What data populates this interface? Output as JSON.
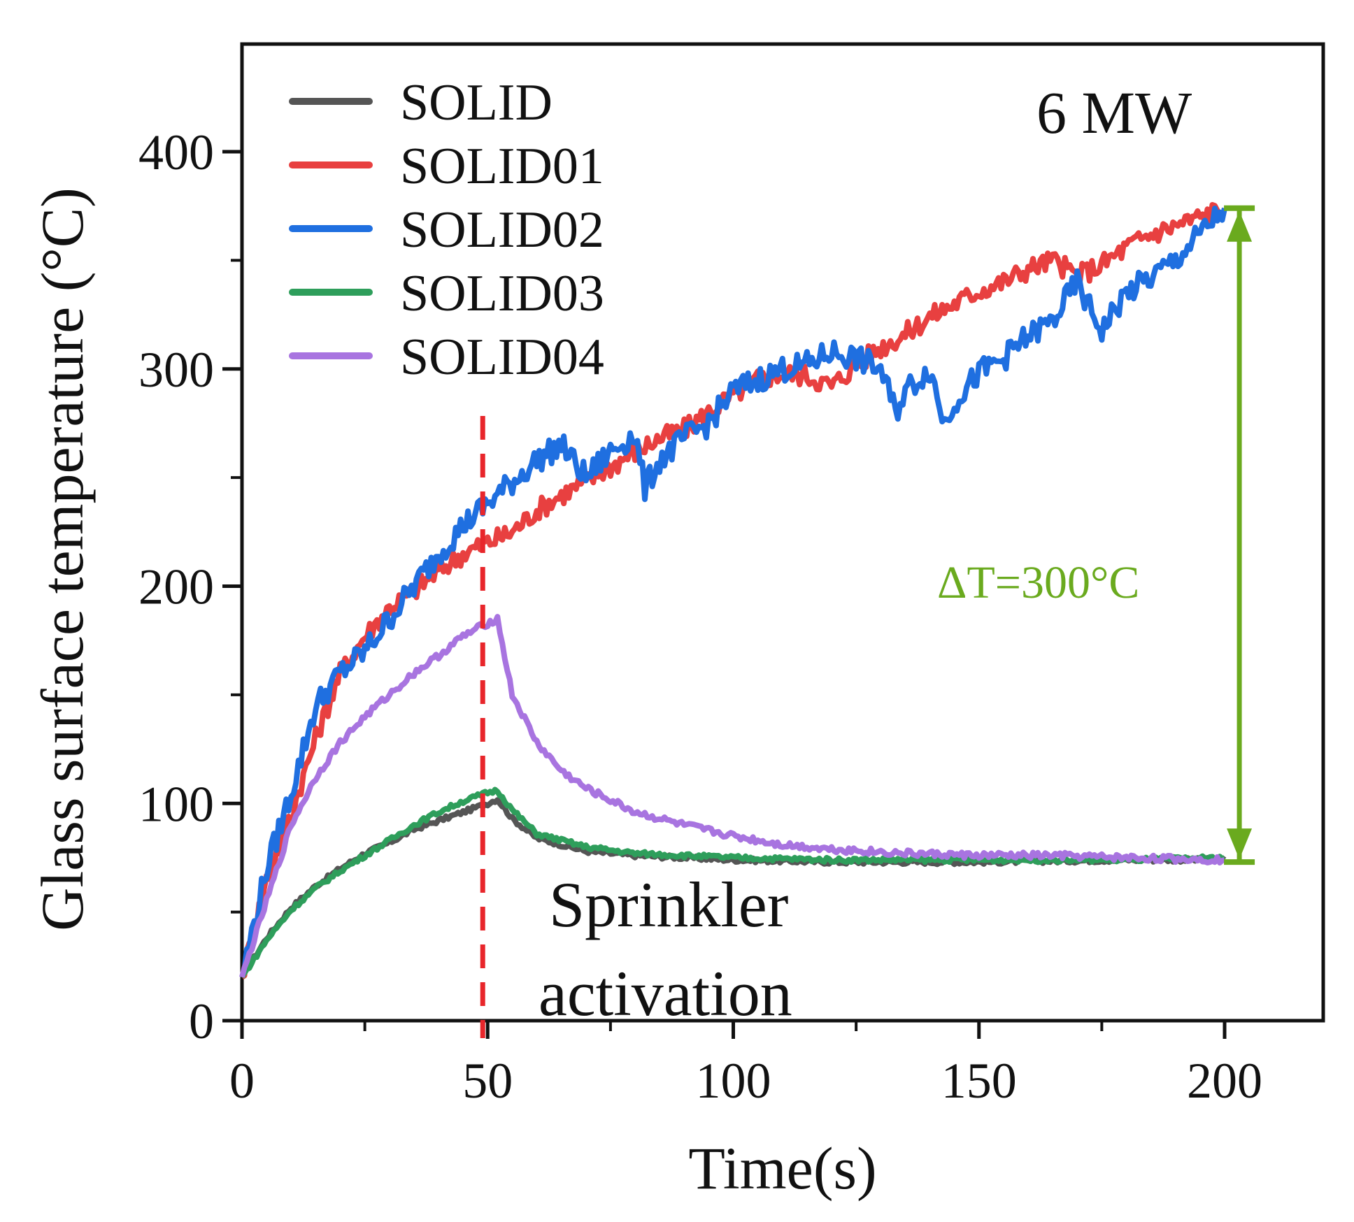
{
  "chart_data": {
    "type": "line",
    "title": "",
    "xlabel": "Time(s)",
    "ylabel": "Glass surface temperature (°C)",
    "xlim": [
      0,
      220
    ],
    "ylim": [
      0,
      450
    ],
    "x_ticks": [
      0,
      50,
      100,
      150,
      200
    ],
    "x_tick_labels": [
      "0",
      "50",
      "100",
      "150",
      "200"
    ],
    "x_minor_ticks": [
      25,
      75,
      125,
      175
    ],
    "y_ticks": [
      0,
      100,
      200,
      300,
      400
    ],
    "y_tick_labels": [
      "0",
      "100",
      "200",
      "300",
      "400"
    ],
    "y_minor_ticks": [
      50,
      150,
      250,
      350
    ],
    "legend_position": "top-left",
    "series": [
      {
        "name": "SOLID",
        "color": "#555555",
        "x": [
          0,
          5,
          10,
          15,
          20,
          25,
          30,
          35,
          40,
          45,
          50,
          52,
          55,
          60,
          70,
          80,
          90,
          100,
          120,
          150,
          180,
          200
        ],
        "y": [
          20,
          38,
          52,
          62,
          70,
          77,
          82,
          88,
          92,
          96,
          100,
          102,
          93,
          84,
          78,
          76,
          75,
          74,
          73,
          73,
          74,
          74
        ]
      },
      {
        "name": "SOLID01",
        "color": "#e84040",
        "x": [
          0,
          5,
          10,
          15,
          20,
          25,
          30,
          35,
          40,
          45,
          50,
          55,
          60,
          65,
          70,
          75,
          80,
          85,
          90,
          95,
          100,
          105,
          110,
          115,
          120,
          125,
          130,
          135,
          140,
          145,
          150,
          155,
          160,
          165,
          170,
          175,
          180,
          185,
          190,
          195,
          200
        ],
        "y": [
          20,
          65,
          95,
          130,
          160,
          177,
          190,
          198,
          207,
          215,
          220,
          225,
          235,
          242,
          248,
          255,
          262,
          268,
          272,
          280,
          288,
          295,
          298,
          297,
          292,
          302,
          310,
          316,
          324,
          330,
          336,
          340,
          346,
          350,
          343,
          348,
          356,
          362,
          366,
          370,
          374
        ]
      },
      {
        "name": "SOLID02",
        "color": "#1f6fe0",
        "x": [
          0,
          5,
          10,
          15,
          20,
          25,
          30,
          35,
          40,
          45,
          50,
          55,
          60,
          65,
          70,
          75,
          80,
          82,
          85,
          90,
          95,
          100,
          105,
          110,
          115,
          120,
          125,
          130,
          133,
          135,
          140,
          143,
          145,
          150,
          155,
          160,
          165,
          170,
          172,
          175,
          180,
          185,
          190,
          195,
          200
        ],
        "y": [
          20,
          70,
          105,
          145,
          160,
          170,
          185,
          200,
          215,
          228,
          238,
          248,
          258,
          265,
          250,
          262,
          270,
          245,
          258,
          268,
          275,
          290,
          295,
          300,
          302,
          308,
          305,
          300,
          280,
          290,
          300,
          275,
          285,
          298,
          305,
          315,
          322,
          340,
          330,
          318,
          335,
          342,
          350,
          362,
          374
        ]
      },
      {
        "name": "SOLID03",
        "color": "#2e9e5b",
        "x": [
          0,
          5,
          10,
          15,
          20,
          25,
          30,
          35,
          40,
          45,
          50,
          52,
          55,
          60,
          70,
          80,
          90,
          100,
          120,
          150,
          180,
          200
        ],
        "y": [
          20,
          37,
          51,
          61,
          69,
          76,
          83,
          90,
          96,
          101,
          105,
          106,
          97,
          86,
          80,
          77,
          76,
          75,
          74,
          74,
          74,
          75
        ]
      },
      {
        "name": "SOLID04",
        "color": "#a874e0",
        "x": [
          0,
          5,
          10,
          15,
          20,
          25,
          30,
          35,
          40,
          45,
          50,
          52,
          55,
          60,
          65,
          70,
          80,
          90,
          100,
          110,
          120,
          135,
          150,
          165,
          180,
          200
        ],
        "y": [
          20,
          55,
          90,
          112,
          128,
          140,
          150,
          160,
          168,
          177,
          183,
          185,
          150,
          128,
          115,
          107,
          96,
          90,
          85,
          81,
          79,
          77,
          76,
          76,
          75,
          74
        ]
      }
    ],
    "annotations": {
      "mw_label": "6 MW",
      "sprinkler_line1": "Sprinkler",
      "sprinkler_line2": "activation",
      "sprinkler_time": 49,
      "sprinkler_color": "#e8262b",
      "delta_label": "ΔT=300°C",
      "delta_color": "#6aaa1e",
      "delta_x": 203,
      "delta_top": 374,
      "delta_bottom": 73
    }
  }
}
